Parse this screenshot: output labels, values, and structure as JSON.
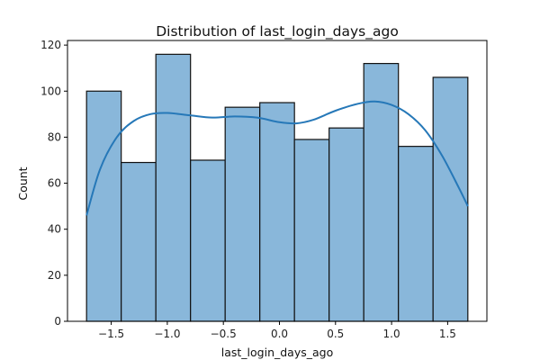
{
  "chart_data": {
    "type": "bar",
    "title": "Distribution of last_login_days_ago",
    "xlabel": "last_login_days_ago",
    "ylabel": "Count",
    "bin_edges": [
      -1.72,
      -1.411,
      -1.102,
      -0.793,
      -0.484,
      -0.175,
      0.134,
      0.443,
      0.752,
      1.061,
      1.37,
      1.68
    ],
    "values": [
      100,
      69,
      116,
      70,
      93,
      95,
      79,
      84,
      112,
      76,
      106
    ],
    "kde": {
      "x": [
        -1.72,
        -1.6,
        -1.45,
        -1.3,
        -1.15,
        -1.0,
        -0.8,
        -0.6,
        -0.4,
        -0.2,
        0.0,
        0.15,
        0.3,
        0.5,
        0.7,
        0.85,
        1.0,
        1.15,
        1.3,
        1.45,
        1.6,
        1.68
      ],
      "y": [
        46,
        66,
        80,
        87,
        90,
        90.5,
        89.5,
        88.5,
        89,
        88.5,
        86.5,
        86,
        87.5,
        91.5,
        94.5,
        95.5,
        94,
        90,
        83,
        72,
        58,
        50
      ]
    },
    "xlim": [
      -1.89,
      1.85
    ],
    "ylim": [
      0,
      122
    ],
    "x_ticks": [
      -1.5,
      -1.0,
      -0.5,
      0.0,
      0.5,
      1.0,
      1.5
    ],
    "x_tick_labels": [
      "−1.5",
      "−1.0",
      "−0.5",
      "0.0",
      "0.5",
      "1.0",
      "1.5"
    ],
    "y_ticks": [
      0,
      20,
      40,
      60,
      80,
      100,
      120
    ],
    "y_tick_labels": [
      "0",
      "20",
      "40",
      "60",
      "80",
      "100",
      "120"
    ],
    "grid": false,
    "colors": {
      "bar_fill": "#89b7da",
      "bar_edge": "#111111",
      "kde_line": "#2678b8",
      "axis": "#000000"
    }
  }
}
